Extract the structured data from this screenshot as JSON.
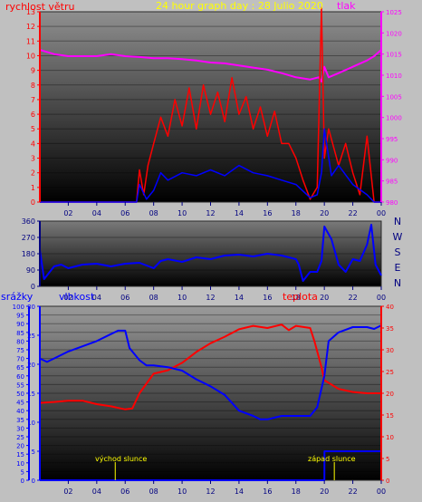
{
  "colors": {
    "wind": "#ff0000",
    "pressure": "#ff00ff",
    "direction": "#0000ff",
    "title": "#ffff00",
    "humidity": "#0000ff",
    "temperature": "#ff0000",
    "precip": "#0000ff",
    "sun": "#ffff00"
  },
  "chart_data": [
    {
      "type": "line",
      "title": "24 hour graph day : 28 Julio 2020",
      "label_left": "rychlost větru",
      "label_right": "tlak",
      "x_ticks": [
        "02",
        "04",
        "06",
        "08",
        "10",
        "12",
        "14",
        "16",
        "18",
        "20",
        "22",
        "00"
      ],
      "ylim_left": [
        0,
        13
      ],
      "yticks_left": [
        "0",
        "1",
        "2",
        "3",
        "4",
        "5",
        "6",
        "7",
        "8",
        "9",
        "10",
        "11",
        "12",
        "13"
      ],
      "ylim_right": [
        980,
        1025
      ],
      "yticks_right": [
        "980",
        "985",
        "990",
        "995",
        "1000",
        "1005",
        "1010",
        "1015",
        "1020",
        "1025"
      ],
      "series": [
        {
          "key": "pressure",
          "x": [
            0,
            1,
            2,
            3,
            4,
            5,
            6,
            7,
            8,
            9,
            10,
            11,
            12,
            13,
            14,
            15,
            16,
            17,
            18,
            19,
            19.6,
            19.8,
            20,
            20.3,
            21,
            22,
            23,
            23.5,
            24
          ],
          "values": [
            1016,
            1015,
            1014.5,
            1014.5,
            1014.5,
            1015,
            1014.5,
            1014.3,
            1014,
            1014,
            1013.8,
            1013.5,
            1013,
            1012.8,
            1012.3,
            1011.8,
            1011.3,
            1010.5,
            1009.5,
            1009,
            1009.5,
            1008.5,
            1012,
            1009.5,
            1010.5,
            1012,
            1013.5,
            1014.5,
            1016
          ]
        },
        {
          "key": "wind_gust",
          "x": [
            0,
            6.8,
            7,
            7.3,
            7.6,
            8,
            8.5,
            9,
            9.5,
            10,
            10.5,
            11,
            11.5,
            12,
            12.5,
            13,
            13.5,
            14,
            14.5,
            15,
            15.5,
            16,
            16.5,
            17,
            17.5,
            18,
            18.5,
            19,
            19.5,
            19.8,
            20,
            20.3,
            21,
            21.5,
            22,
            22.5,
            23,
            23.5,
            24
          ],
          "values": [
            0,
            0,
            2.2,
            0.5,
            2.5,
            4,
            5.8,
            4.5,
            7,
            5.2,
            7.8,
            5,
            8,
            6,
            7.5,
            5.5,
            8.5,
            6,
            7.2,
            5,
            6.5,
            4.5,
            6.2,
            4,
            4,
            3,
            1.5,
            0.2,
            1,
            13.3,
            3,
            5,
            2.5,
            4,
            2,
            0.5,
            4.5,
            0,
            0
          ]
        },
        {
          "key": "wind_avg",
          "x": [
            0,
            6.8,
            7,
            7.5,
            8,
            8.5,
            9,
            10,
            11,
            12,
            13,
            14,
            15,
            16,
            17,
            18,
            19,
            19.5,
            19.8,
            20,
            20.5,
            21,
            22,
            23,
            23.5,
            24
          ],
          "values": [
            0,
            0,
            1.2,
            0.2,
            0.8,
            2,
            1.5,
            2,
            1.8,
            2.2,
            1.8,
            2.5,
            2,
            1.8,
            1.5,
            1.2,
            0.3,
            0.5,
            2,
            5,
            1.8,
            2.5,
            1.2,
            0.5,
            0,
            0
          ]
        }
      ]
    },
    {
      "type": "line",
      "title": "",
      "dir_labels": [
        "N",
        "W",
        "S",
        "E",
        "N"
      ],
      "ylim": [
        0,
        360
      ],
      "yticks": [
        "0",
        "90",
        "180",
        "270",
        "360"
      ],
      "series": [
        {
          "key": "direction",
          "x": [
            0,
            0.3,
            1,
            1.5,
            2,
            3,
            4,
            5,
            6,
            7,
            8,
            8.5,
            9,
            10,
            11,
            12,
            13,
            14,
            15,
            16,
            17,
            18,
            18.2,
            18.5,
            19,
            19.5,
            19.8,
            20,
            20.5,
            21,
            21.5,
            22,
            22.5,
            23,
            23.3,
            23.6,
            24
          ],
          "values": [
            200,
            40,
            110,
            120,
            100,
            120,
            125,
            110,
            125,
            130,
            100,
            140,
            150,
            135,
            160,
            150,
            170,
            175,
            165,
            180,
            170,
            150,
            120,
            30,
            80,
            80,
            140,
            330,
            260,
            120,
            80,
            150,
            140,
            230,
            340,
            120,
            60
          ]
        }
      ]
    },
    {
      "type": "line",
      "title": "",
      "label_precip": "srážky",
      "label_humidity": "vlhkost",
      "label_temperature": "teplota",
      "ylim_precip": [
        0,
        100
      ],
      "yticks_precip": [
        "0",
        "5",
        "10",
        "15",
        "20",
        "25",
        "30",
        "35",
        "40",
        "45",
        "50",
        "55",
        "60",
        "65",
        "70",
        "75",
        "80",
        "85",
        "90",
        "95",
        "100"
      ],
      "ylim_humidity": [
        0,
        30
      ],
      "yticks_humidity": [
        "0",
        "5",
        "10",
        "15",
        "20",
        "25",
        "30"
      ],
      "ylim_temperature": [
        0,
        40
      ],
      "yticks_temperature": [
        "0",
        "5",
        "10",
        "15",
        "20",
        "25",
        "30",
        "35",
        "40"
      ],
      "sunrise_label": "východ slunce",
      "sunset_label": "západ slunce",
      "sunrise_x": 5.3,
      "sunset_x": 20.7,
      "series": [
        {
          "key": "humidity",
          "x": [
            0,
            0.5,
            1,
            2,
            3,
            4,
            5,
            5.5,
            6,
            6.3,
            7,
            7.5,
            8,
            9,
            10,
            11,
            12,
            13,
            14,
            15,
            15.5,
            16,
            17,
            18,
            19,
            19.5,
            20,
            20.3,
            21,
            22,
            23,
            23.5,
            24
          ],
          "values": [
            70,
            68,
            70,
            74,
            77,
            80,
            84,
            86,
            86,
            76,
            69,
            66,
            66,
            65,
            63,
            58,
            54,
            49,
            40,
            37,
            35,
            35,
            37,
            37,
            37,
            42,
            60,
            80,
            85,
            88,
            88,
            87,
            89
          ]
        },
        {
          "key": "temperature",
          "x": [
            0,
            1,
            2,
            3,
            4,
            5,
            6,
            6.5,
            7,
            8,
            9,
            10,
            11,
            12,
            13,
            14,
            15,
            16,
            17,
            17.5,
            18,
            19,
            19.3,
            19.8,
            20,
            21,
            22,
            23,
            24
          ],
          "values": [
            17.8,
            18,
            18.3,
            18.3,
            17.5,
            17,
            16.3,
            16.5,
            20,
            24.5,
            25.3,
            27,
            29.5,
            31.5,
            33,
            34.7,
            35.5,
            35,
            35.8,
            34.5,
            35.5,
            35,
            32,
            26,
            23,
            21,
            20.3,
            20,
            20
          ]
        },
        {
          "key": "precip",
          "x": [
            0,
            20,
            20.01,
            24
          ],
          "values": [
            0,
            0,
            5,
            5
          ]
        }
      ]
    }
  ]
}
